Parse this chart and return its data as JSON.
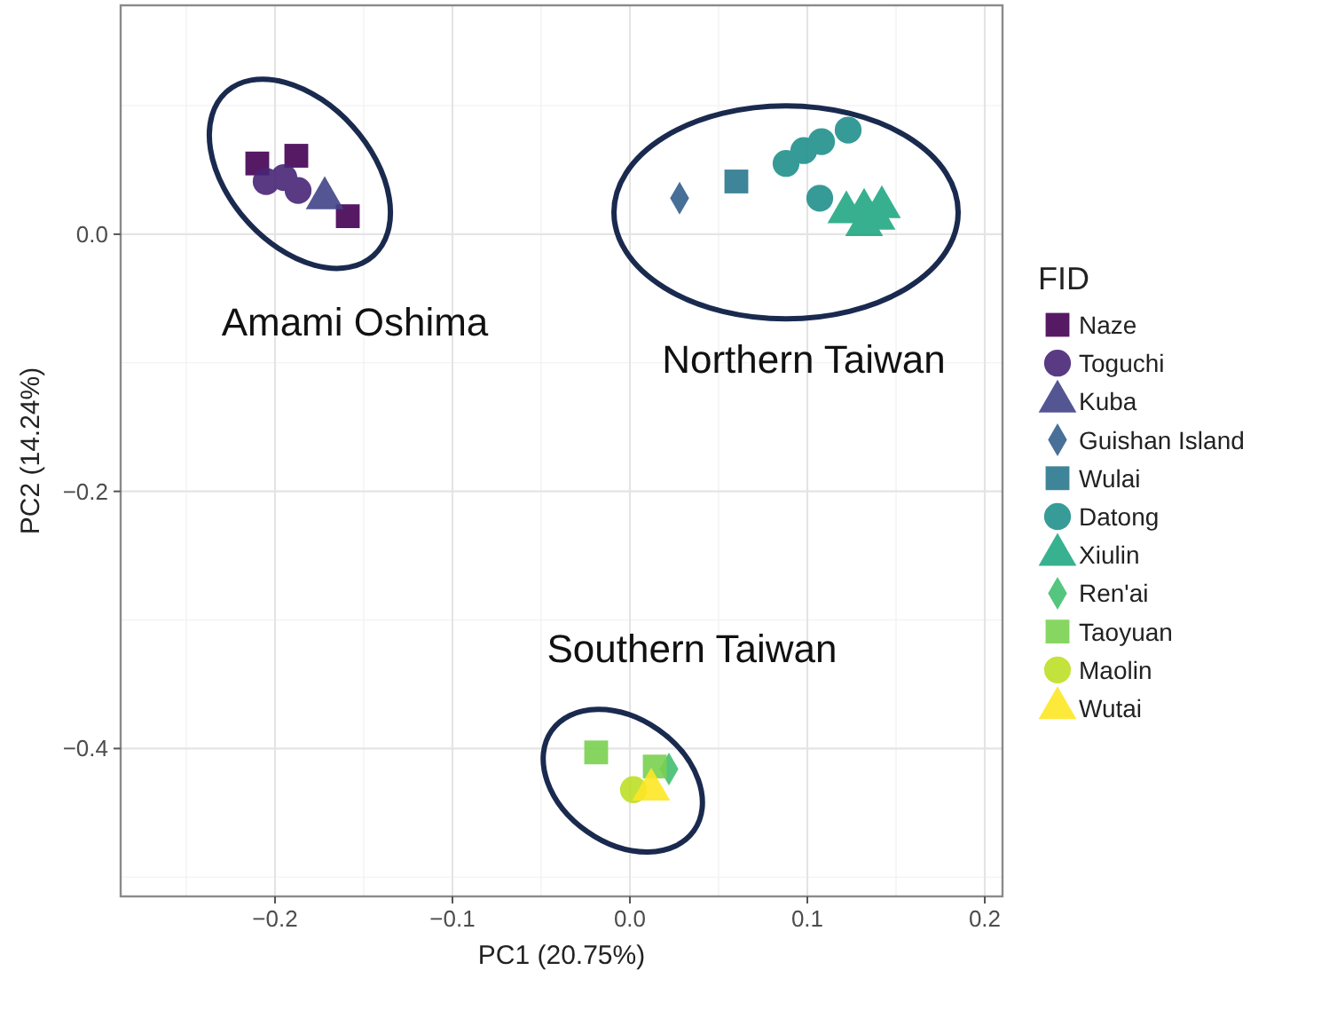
{
  "chart_data": {
    "type": "scatter",
    "xlabel": "PC1 (20.75%)",
    "ylabel": "PC2 (14.24%)",
    "legend_title": "FID",
    "legend": "right",
    "grid": true,
    "xlim": [
      -0.287,
      0.21
    ],
    "ylim": [
      -0.515,
      0.178
    ],
    "xticks": [
      {
        "value": -0.2,
        "label": "−0.2"
      },
      {
        "value": -0.1,
        "label": "−0.1"
      },
      {
        "value": 0,
        "label": "0.0"
      },
      0.1,
      0.2
    ],
    "yticks": [
      {
        "value": -0.4,
        "label": "−0.4"
      },
      {
        "value": -0.2,
        "label": "−0.2"
      },
      {
        "value": 0,
        "label": "0.0"
      }
    ],
    "annotations": [
      "Amami Oshima",
      "Northern Taiwan",
      "Southern Taiwan"
    ],
    "series": [
      {
        "name": "Naze",
        "color": "#440154",
        "marker": "square",
        "x": [
          -0.21,
          -0.188,
          -0.159
        ],
        "values": [
          0.055,
          0.061,
          0.014
        ]
      },
      {
        "name": "Toguchi",
        "color": "#482576",
        "marker": "circle",
        "x": [
          -0.205,
          -0.195,
          -0.187
        ],
        "values": [
          0.041,
          0.044,
          0.034
        ]
      },
      {
        "name": "Kuba",
        "color": "#414487",
        "marker": "triangle",
        "x": [
          -0.172
        ],
        "values": [
          0.028
        ]
      },
      {
        "name": "Guishan Island",
        "color": "#35608d",
        "marker": "diamond",
        "x": [
          0.028
        ],
        "values": [
          0.028
        ]
      },
      {
        "name": "Wulai",
        "color": "#2a788e",
        "marker": "square",
        "x": [
          0.06
        ],
        "values": [
          0.041
        ]
      },
      {
        "name": "Datong",
        "color": "#21918c",
        "marker": "circle",
        "x": [
          0.088,
          0.098,
          0.108,
          0.123,
          0.107
        ],
        "values": [
          0.055,
          0.065,
          0.072,
          0.081,
          0.028
        ]
      },
      {
        "name": "Xiulin",
        "color": "#22a884",
        "marker": "triangle",
        "x": [
          0.122,
          0.132,
          0.142,
          0.132,
          0.139
        ],
        "values": [
          0.017,
          0.019,
          0.021,
          0.007,
          0.012
        ]
      },
      {
        "name": "Ren'ai",
        "color": "#43bf71",
        "marker": "diamond",
        "x": [
          0.022
        ],
        "values": [
          -0.416
        ]
      },
      {
        "name": "Taoyuan",
        "color": "#7ad151",
        "marker": "square",
        "x": [
          -0.019,
          0.014
        ],
        "values": [
          -0.403,
          -0.414
        ]
      },
      {
        "name": "Maolin",
        "color": "#bddf26",
        "marker": "circle",
        "x": [
          0.002
        ],
        "values": [
          -0.432
        ]
      },
      {
        "name": "Wutai",
        "color": "#fde725",
        "marker": "triangle",
        "x": [
          0.012
        ],
        "values": [
          -0.432
        ]
      }
    ]
  }
}
